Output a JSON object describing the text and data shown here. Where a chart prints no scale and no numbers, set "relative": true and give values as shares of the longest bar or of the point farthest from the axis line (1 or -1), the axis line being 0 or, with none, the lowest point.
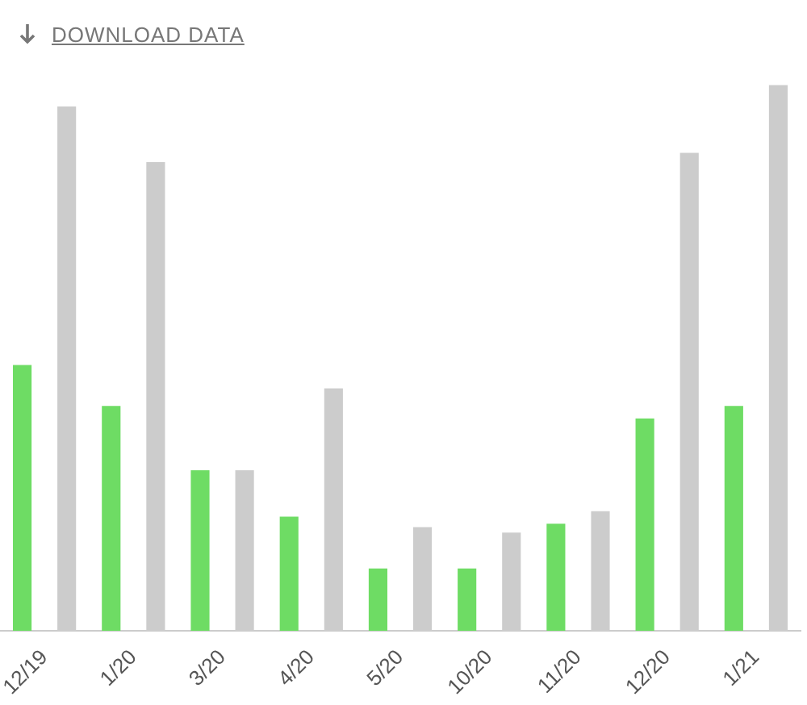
{
  "chart_data": {
    "type": "bar",
    "relative": true,
    "annotations": [
      "DOWNLOAD DATA"
    ],
    "categories": [
      "12/19",
      "1/20",
      "3/20",
      "4/20",
      "5/20",
      "10/20",
      "11/20",
      "12/20",
      "1/21"
    ],
    "series": [
      {
        "color": "#6edc64",
        "values": [
          0.487,
          0.412,
          0.294,
          0.209,
          0.114,
          0.114,
          0.196,
          0.389,
          0.412
        ]
      },
      {
        "color": "#cccccc",
        "values": [
          0.961,
          0.859,
          0.294,
          0.444,
          0.19,
          0.18,
          0.219,
          0.876,
          1
        ]
      }
    ],
    "grid": false,
    "legend": false
  }
}
